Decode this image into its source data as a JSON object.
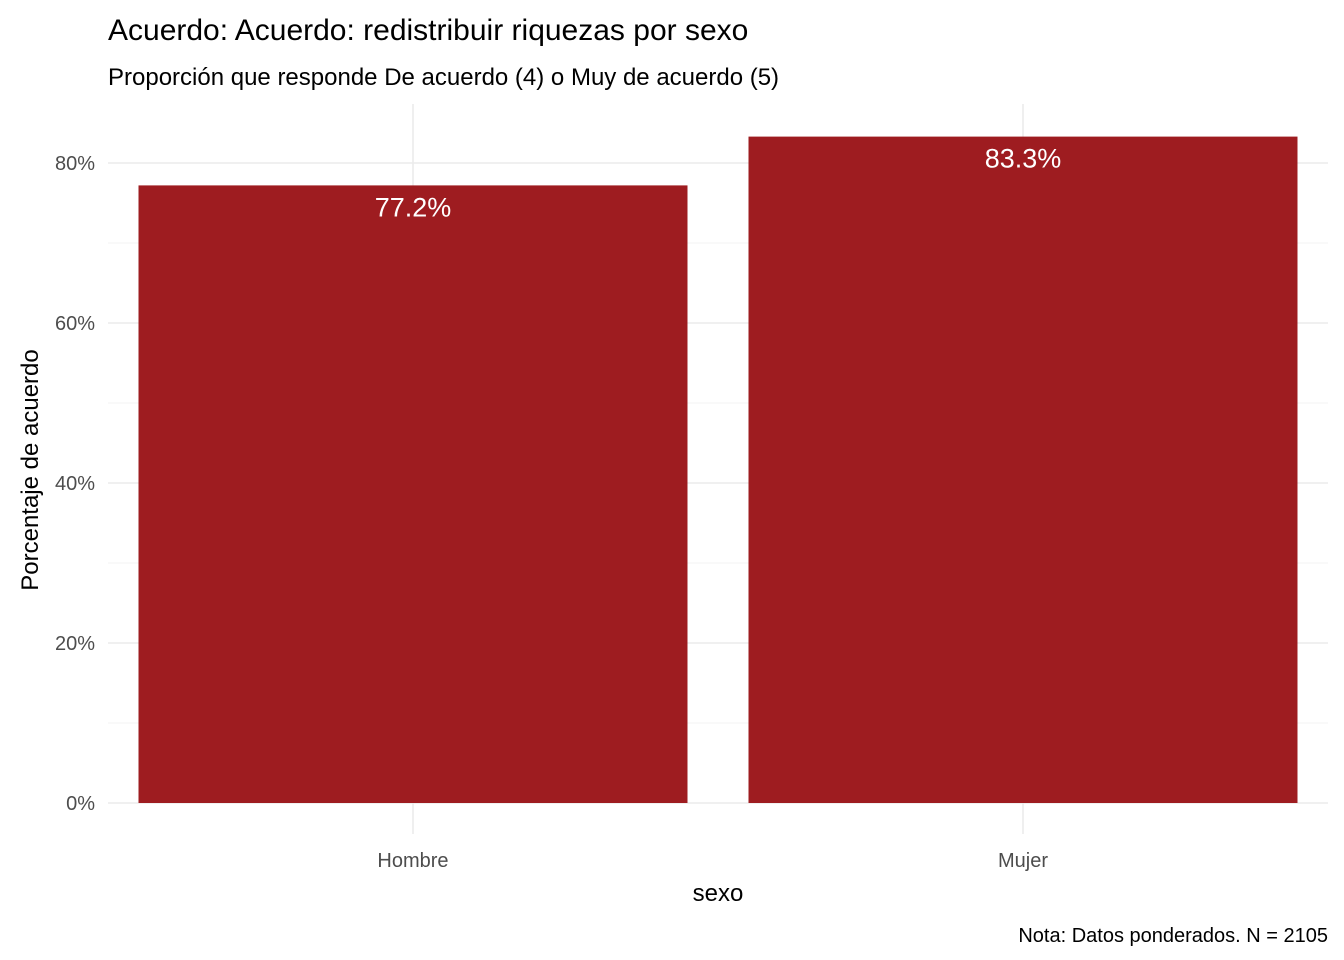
{
  "chart_data": {
    "type": "bar",
    "title": "Acuerdo: Acuerdo: redistribuir riquezas por sexo",
    "subtitle": "Proporción que responde De acuerdo (4) o Muy de acuerdo (5)",
    "xlabel": "sexo",
    "ylabel": "Porcentaje de acuerdo",
    "caption": "Nota: Datos ponderados. N = 2105",
    "categories": [
      "Hombre",
      "Mujer"
    ],
    "values": [
      77.2,
      83.3
    ],
    "data_labels": [
      "77.2%",
      "83.3%"
    ],
    "yticks": [
      0,
      20,
      40,
      60,
      80
    ],
    "ytick_labels": [
      "0%",
      "20%",
      "40%",
      "60%",
      "80%"
    ],
    "ylim": [
      0,
      87.5
    ],
    "grid": true,
    "legend": "none",
    "bar_color": "#9E1C20"
  }
}
